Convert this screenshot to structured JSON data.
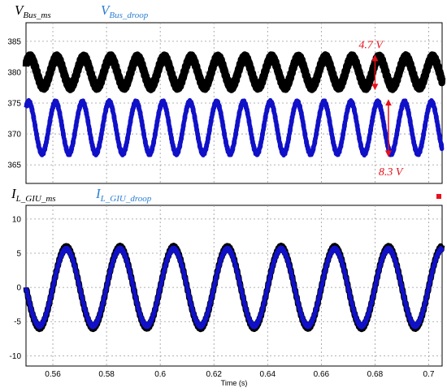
{
  "chart_data": [
    {
      "type": "line",
      "x_range": [
        0.55,
        0.705
      ],
      "ylim": [
        362,
        388
      ],
      "yticks": [
        365,
        370,
        375,
        380,
        385
      ],
      "legend": [
        {
          "main": "V",
          "sub": "Bus_ms",
          "color": "#000000"
        },
        {
          "main": "V",
          "sub": "Bus_droop",
          "color": "#2a7fd4"
        }
      ],
      "series": [
        {
          "mean": 380.0,
          "amp": 2.35,
          "freq_hz": 100,
          "phase_deg": 36,
          "color": "#000000",
          "band": 0.5
        },
        {
          "mean": 371.0,
          "amp": 4.15,
          "freq_hz": 100,
          "phase_deg": 54,
          "color": "#1010c8",
          "band": 0.3
        }
      ],
      "annotations": [
        {
          "text": "4.7 V",
          "x": 0.68,
          "y_from": 377.6,
          "y_to": 382.3,
          "label_y": 384.5
        },
        {
          "text": "8.3 V",
          "x": 0.685,
          "y_from": 366.8,
          "y_to": 375.1,
          "label_y": 364.0
        }
      ],
      "marker": null
    },
    {
      "type": "line",
      "x_range": [
        0.55,
        0.705
      ],
      "ylim": [
        -11.5,
        12
      ],
      "yticks": [
        -10,
        -5,
        0,
        5,
        10
      ],
      "xticks": [
        0.56,
        0.58,
        0.6,
        0.62,
        0.64,
        0.66,
        0.68,
        0.7
      ],
      "xlabel": "Time (s)",
      "legend": [
        {
          "main": "I",
          "sub": "L_GIU_ms",
          "color": "#000000"
        },
        {
          "main": "I",
          "sub": "L_GIU_droop",
          "color": "#2a7fd4"
        }
      ],
      "series": [
        {
          "mean": 0,
          "amp": 5.8,
          "freq_hz": 50,
          "phase_deg": 0,
          "color": "#000000",
          "band": 0.35
        },
        {
          "mean": 0,
          "amp": 5.6,
          "freq_hz": 50,
          "phase_deg": 0,
          "color": "#1010c8",
          "band": 0.25
        }
      ],
      "marker": {
        "color": "#e8101a"
      }
    }
  ]
}
